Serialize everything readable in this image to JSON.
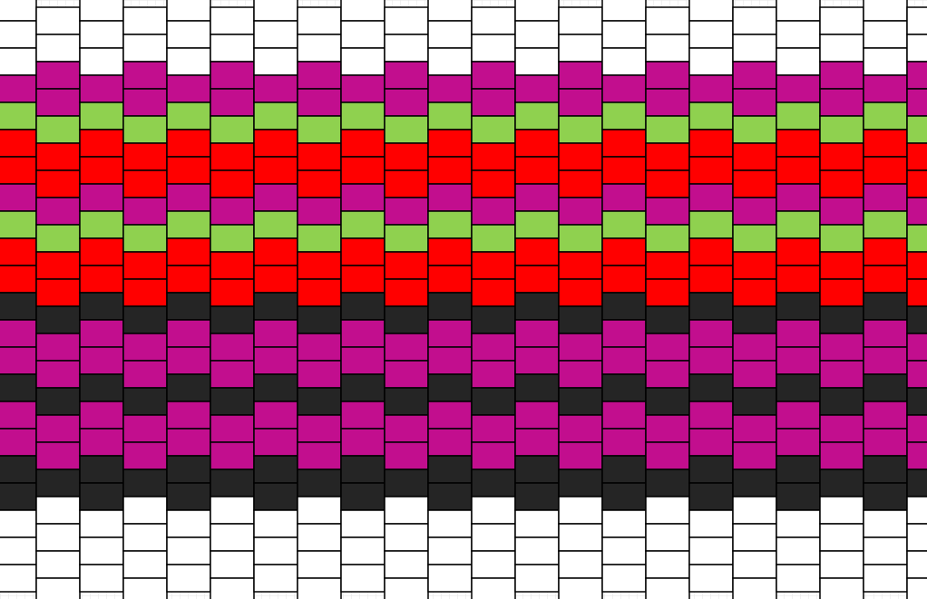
{
  "pattern": {
    "palette": {
      "W": "#ffffff",
      "M": "#c20e8e",
      "G": "#8fd14f",
      "R": "#ff0000",
      "K": "#252525"
    },
    "column_a": [
      "W",
      "W",
      "M",
      "M",
      "G",
      "R",
      "R",
      "M",
      "G",
      "R",
      "R",
      "K",
      "M",
      "M",
      "K",
      "M",
      "M",
      "K",
      "W",
      "W",
      "W",
      "W"
    ],
    "column_b": [
      "W",
      "W",
      "W",
      "M",
      "G",
      "R",
      "R",
      "M",
      "G",
      "R",
      "R",
      "K",
      "M",
      "M",
      "K",
      "M",
      "M",
      "K",
      "K",
      "W",
      "W",
      "W"
    ]
  }
}
